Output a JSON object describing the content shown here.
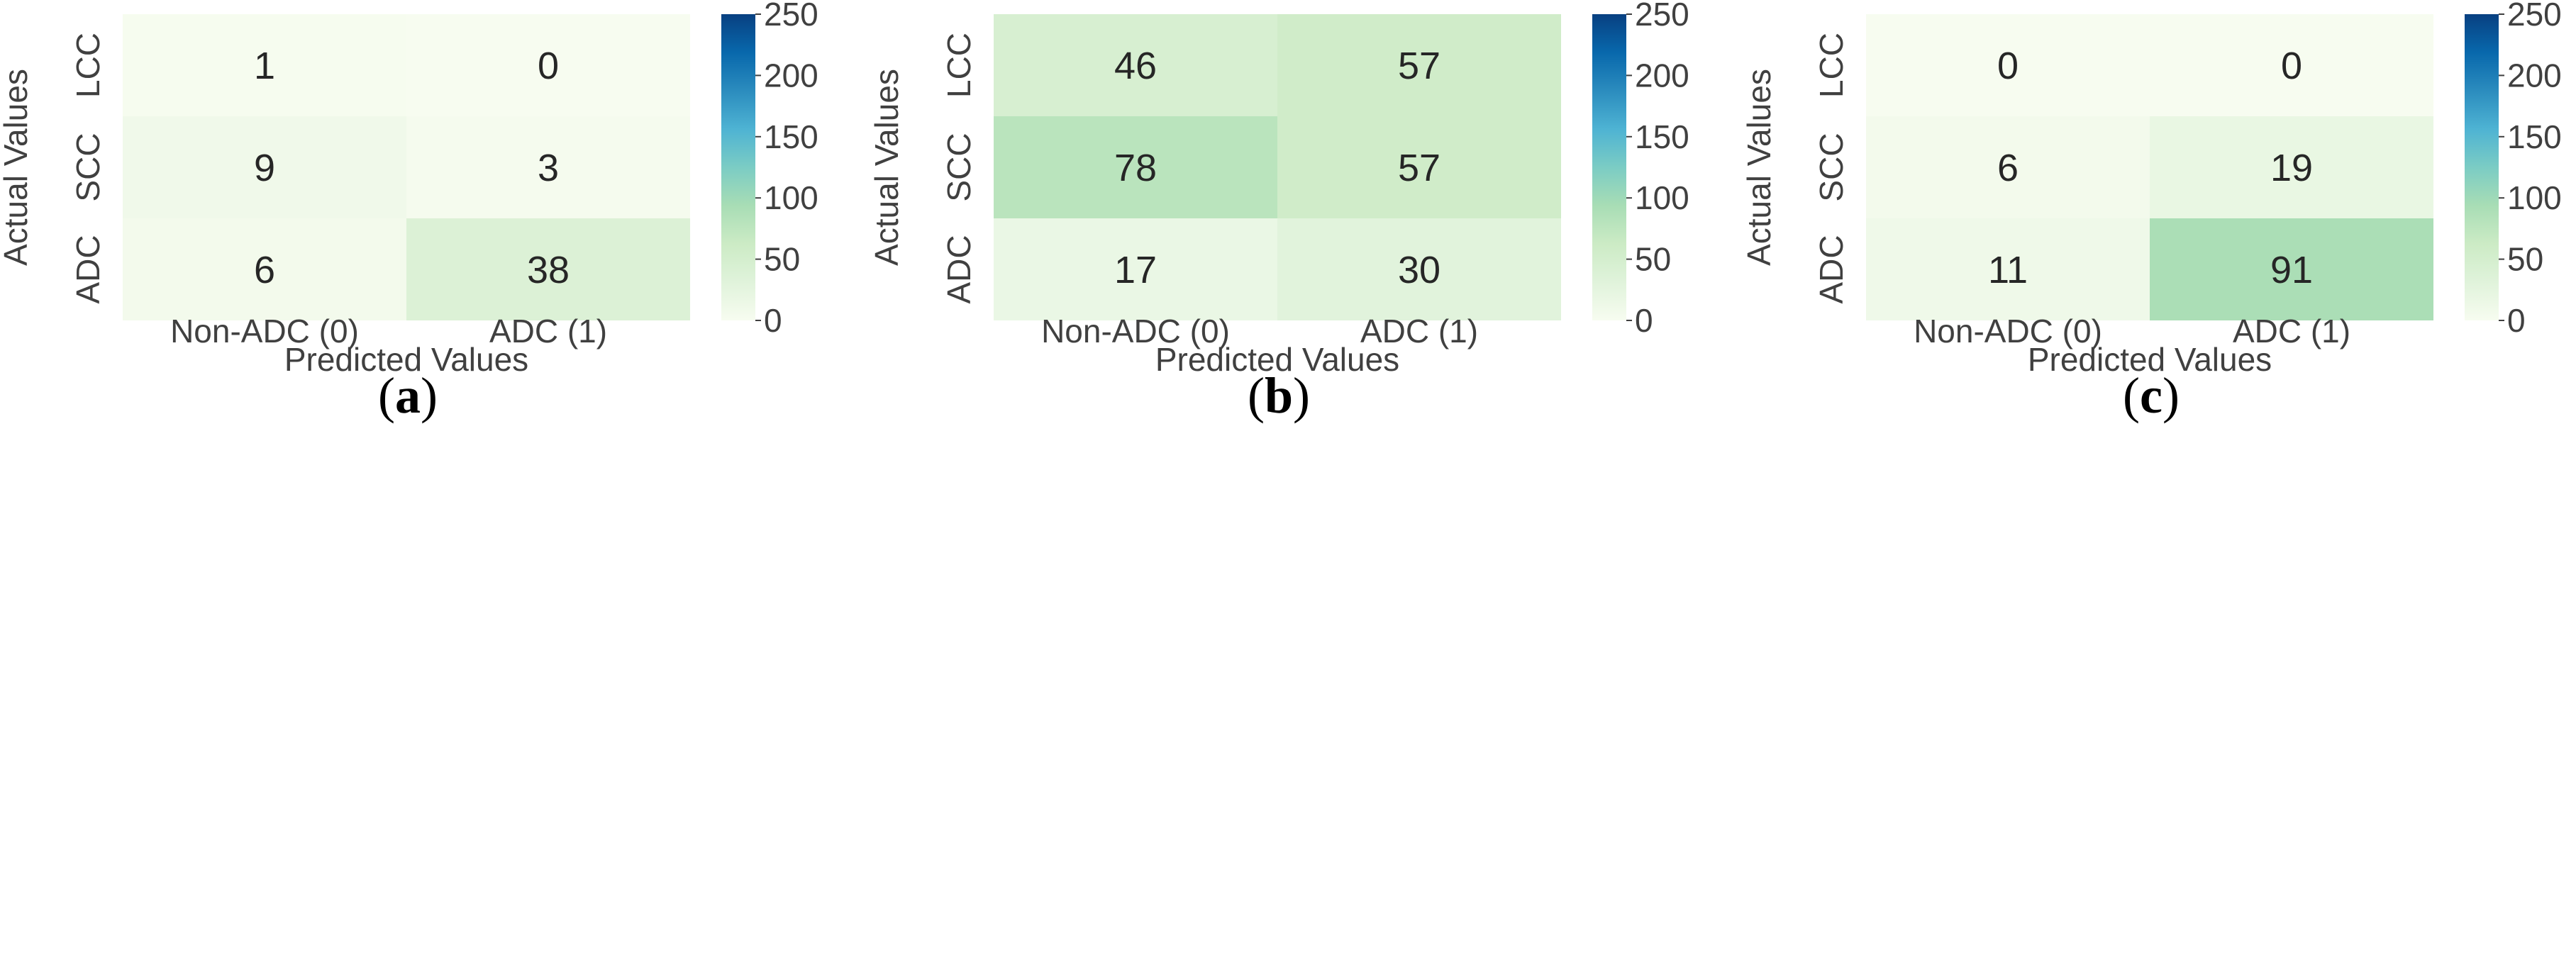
{
  "chart_data": [
    {
      "type": "heatmap",
      "panel_label": "a",
      "row_labels": [
        "LCC",
        "SCC",
        "ADC"
      ],
      "col_labels": [
        "Non-ADC (0)",
        "ADC (1)"
      ],
      "values": [
        [
          1,
          0
        ],
        [
          9,
          3
        ],
        [
          6,
          38
        ]
      ],
      "xlabel": "Predicted Values",
      "ylabel": "Actual Values",
      "colorbar": {
        "min": 0,
        "max": 250,
        "ticks": [
          "0",
          "50",
          "100",
          "150",
          "200",
          "250"
        ]
      }
    },
    {
      "type": "heatmap",
      "panel_label": "b",
      "row_labels": [
        "LCC",
        "SCC",
        "ADC"
      ],
      "col_labels": [
        "Non-ADC (0)",
        "ADC (1)"
      ],
      "values": [
        [
          46,
          57
        ],
        [
          78,
          57
        ],
        [
          17,
          30
        ]
      ],
      "xlabel": "Predicted Values",
      "ylabel": "Actual Values",
      "colorbar": {
        "min": 0,
        "max": 250,
        "ticks": [
          "0",
          "50",
          "100",
          "150",
          "200",
          "250"
        ]
      }
    },
    {
      "type": "heatmap",
      "panel_label": "c",
      "row_labels": [
        "LCC",
        "SCC",
        "ADC"
      ],
      "col_labels": [
        "Non-ADC (0)",
        "ADC (1)"
      ],
      "values": [
        [
          0,
          0
        ],
        [
          6,
          19
        ],
        [
          11,
          91
        ]
      ],
      "xlabel": "Predicted Values",
      "ylabel": "Actual Values",
      "colorbar": {
        "min": 0,
        "max": 250,
        "ticks": [
          "0",
          "50",
          "100",
          "150",
          "200",
          "250"
        ]
      }
    }
  ],
  "colormap": {
    "name": "GnBu",
    "stops": [
      "#f7fcf0",
      "#e0f3db",
      "#ccebc5",
      "#a8ddb5",
      "#7bccc4",
      "#4eb3d3",
      "#2b8cbe",
      "#0868ac",
      "#084081"
    ]
  }
}
